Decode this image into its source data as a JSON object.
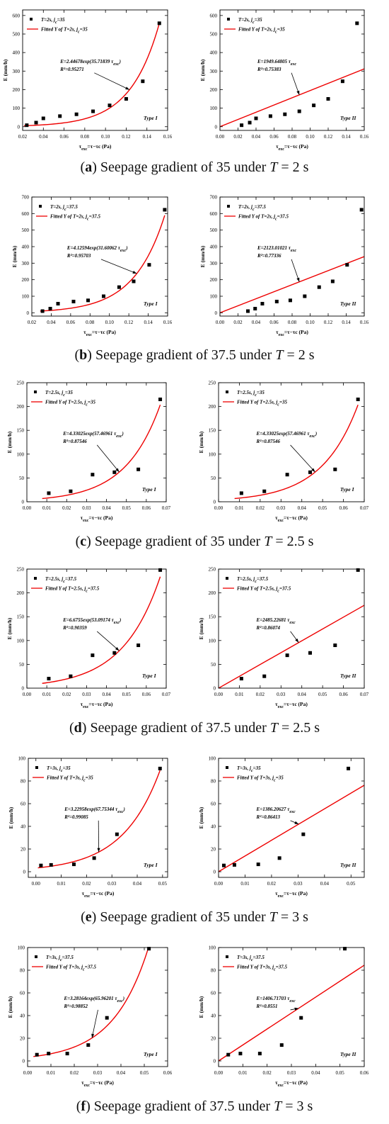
{
  "captions": [
    {
      "letter": "a",
      "prefix": "Seepage gradient of 35 under ",
      "var": "T",
      "suffix": " = 2 s"
    },
    {
      "letter": "b",
      "prefix": "Seepage gradient of 37.5 under ",
      "var": "T",
      "suffix": " = 2 s"
    },
    {
      "letter": "c",
      "prefix": "Seepage gradient of 35 under ",
      "var": "T",
      "suffix": " = 2.5 s"
    },
    {
      "letter": "d",
      "prefix": "Seepage gradient of 37.5 under ",
      "var": "T",
      "suffix": " = 2.5 s"
    },
    {
      "letter": "e",
      "prefix": "Seepage gradient of 35 under ",
      "var": "T",
      "suffix": " = 3 s"
    },
    {
      "letter": "f",
      "prefix": "Seepage gradient of 37.5 under ",
      "var": "T",
      "suffix": " = 3 s"
    }
  ],
  "common": {
    "ylabel": "E (mm/h)",
    "xlabel": "τexc=τ−τc (Pa)",
    "colors": {
      "fit": "#ee0000",
      "points": "#000000",
      "axis": "#000000"
    }
  },
  "chart_data": [
    {
      "id": "a1",
      "type": "scatter",
      "fit": "exp",
      "a": 2.44678,
      "b": 35.71839,
      "xlim": [
        0.02,
        0.16
      ],
      "xticks": [
        0.02,
        0.04,
        0.06,
        0.08,
        0.1,
        0.12,
        0.14,
        0.16
      ],
      "xdec": 2,
      "ylim": [
        -20,
        630
      ],
      "yticks": [
        0,
        100,
        200,
        300,
        400,
        500,
        600
      ],
      "legend": [
        "T=2s, jc=35",
        "Fitted Y of  T=2s, jc=35"
      ],
      "equation": "E=2.44678exp(35.71839 τexc)",
      "r2": "R²=0.95271",
      "type_label": "Type I",
      "x": [
        0.024,
        0.033,
        0.04,
        0.056,
        0.072,
        0.088,
        0.104,
        0.12,
        0.136,
        0.152
      ],
      "y": [
        8,
        22,
        45,
        57,
        67,
        83,
        115,
        150,
        245,
        558
      ]
    },
    {
      "id": "a2",
      "type": "scatter",
      "fit": "lin",
      "k": 1949.64805,
      "xlim": [
        0,
        0.16
      ],
      "xticks": [
        0,
        0.02,
        0.04,
        0.06,
        0.08,
        0.1,
        0.12,
        0.14,
        0.16
      ],
      "xdec": 2,
      "ylim": [
        -20,
        630
      ],
      "yticks": [
        0,
        100,
        200,
        300,
        400,
        500,
        600
      ],
      "legend": [
        "T=2s, jc=35",
        "Fitted Y of  T=2s, jc=35"
      ],
      "equation": "E=1949.64805 τexc",
      "r2": "R²=0.75383",
      "type_label": "Type II",
      "x": [
        0.024,
        0.033,
        0.04,
        0.056,
        0.072,
        0.088,
        0.104,
        0.12,
        0.136,
        0.152
      ],
      "y": [
        8,
        22,
        45,
        57,
        67,
        83,
        115,
        150,
        245,
        558
      ]
    },
    {
      "id": "b1",
      "type": "scatter",
      "fit": "exp",
      "a": 4.12594,
      "b": 31.60062,
      "xlim": [
        0.02,
        0.16
      ],
      "xticks": [
        0.02,
        0.04,
        0.06,
        0.08,
        0.1,
        0.12,
        0.14,
        0.16
      ],
      "xdec": 2,
      "ylim": [
        -20,
        700
      ],
      "yticks": [
        0,
        100,
        200,
        300,
        400,
        500,
        600,
        700
      ],
      "legend": [
        "T=2s, jc=37.5",
        "Fitted Y of T=2s, jc=37.5"
      ],
      "equation": "E=4.12594exp(31.60062 τexc)",
      "r2": "R²=0.95703",
      "type_label": "Type I",
      "x": [
        0.031,
        0.039,
        0.047,
        0.063,
        0.078,
        0.094,
        0.11,
        0.125,
        0.141,
        0.157
      ],
      "y": [
        10,
        25,
        55,
        68,
        75,
        100,
        155,
        190,
        290,
        623
      ]
    },
    {
      "id": "b2",
      "type": "scatter",
      "fit": "lin",
      "k": 2123.01021,
      "xlim": [
        0,
        0.16
      ],
      "xticks": [
        0,
        0.02,
        0.04,
        0.06,
        0.08,
        0.1,
        0.12,
        0.14,
        0.16
      ],
      "xdec": 2,
      "ylim": [
        -20,
        700
      ],
      "yticks": [
        0,
        100,
        200,
        300,
        400,
        500,
        600,
        700
      ],
      "legend": [
        "T=2s, jc=37.5",
        "Fitted Y of T=2s, jc=37.5"
      ],
      "equation": "E=2123.01021 τexc",
      "r2": "R²=0.77336",
      "type_label": "Type II",
      "x": [
        0.031,
        0.039,
        0.047,
        0.063,
        0.078,
        0.094,
        0.11,
        0.125,
        0.141,
        0.157
      ],
      "y": [
        10,
        25,
        55,
        68,
        75,
        100,
        155,
        190,
        290,
        623
      ]
    },
    {
      "id": "c1",
      "type": "scatter",
      "fit": "exp",
      "a": 4.33025,
      "b": 57.46961,
      "xlim": [
        0,
        0.07
      ],
      "xticks": [
        0,
        0.01,
        0.02,
        0.03,
        0.04,
        0.05,
        0.06,
        0.07
      ],
      "xdec": 2,
      "ylim": [
        0,
        250
      ],
      "yticks": [
        0,
        50,
        100,
        150,
        200,
        250
      ],
      "legend": [
        "T=2.5s, jc=35",
        "Fitted Y of T=2.5s, jc=35"
      ],
      "equation": "E=4.33025exp(57.46961 τexc)",
      "r2": "R²=0.87546",
      "type_label": "Type I",
      "x": [
        0.011,
        0.022,
        0.033,
        0.044,
        0.056,
        0.067
      ],
      "y": [
        18,
        22,
        57,
        62,
        68,
        215
      ]
    },
    {
      "id": "c2",
      "type": "scatter",
      "fit": "exp",
      "a": 4.33025,
      "b": 57.46961,
      "xlim": [
        0,
        0.07
      ],
      "xticks": [
        0,
        0.01,
        0.02,
        0.03,
        0.04,
        0.05,
        0.06,
        0.07
      ],
      "xdec": 2,
      "ylim": [
        0,
        250
      ],
      "yticks": [
        0,
        50,
        100,
        150,
        200,
        250
      ],
      "legend": [
        "T=2.5s, jc=35",
        "Fitted Y of T=2.5s, jc=35"
      ],
      "equation": "E=4.33025exp(57.46961 τexc)",
      "r2": "R²=0.87546",
      "type_label": "Type I",
      "x": [
        0.011,
        0.022,
        0.033,
        0.044,
        0.056,
        0.067
      ],
      "y": [
        18,
        22,
        57,
        62,
        68,
        215
      ]
    },
    {
      "id": "d1",
      "type": "scatter",
      "fit": "exp",
      "a": 6.6755,
      "b": 53.09174,
      "xlim": [
        0,
        0.07
      ],
      "xticks": [
        0,
        0.01,
        0.02,
        0.03,
        0.04,
        0.05,
        0.06,
        0.07
      ],
      "xdec": 2,
      "ylim": [
        0,
        250
      ],
      "yticks": [
        0,
        50,
        100,
        150,
        200,
        250
      ],
      "legend": [
        "T=2.5s, jc=37.5",
        "Fitted Y of T=2.5s, jc=37.5"
      ],
      "equation": "E=6.6755exp(53.09174 τexc)",
      "r2": "R²=0.90359",
      "type_label": "Type I",
      "x": [
        0.011,
        0.022,
        0.033,
        0.044,
        0.056,
        0.067
      ],
      "y": [
        20,
        25,
        69,
        74,
        90,
        248
      ]
    },
    {
      "id": "d2",
      "type": "scatter",
      "fit": "lin",
      "k": 2485.22681,
      "xlim": [
        0,
        0.07
      ],
      "xticks": [
        0,
        0.01,
        0.02,
        0.03,
        0.04,
        0.05,
        0.06,
        0.07
      ],
      "xdec": 2,
      "ylim": [
        0,
        250
      ],
      "yticks": [
        0,
        50,
        100,
        150,
        200,
        250
      ],
      "legend": [
        "T=2.5s, jc=37.5",
        "Fitted Y of T=2.5s, jc=37.5"
      ],
      "equation": "E=2485.22681 τexc",
      "r2": "R²=0.86074",
      "type_label": "Type II",
      "x": [
        0.011,
        0.022,
        0.033,
        0.044,
        0.056,
        0.067
      ],
      "y": [
        20,
        25,
        69,
        74,
        90,
        248
      ]
    },
    {
      "id": "e1",
      "type": "scatter",
      "fit": "exp",
      "a": 3.22958,
      "b": 67.75344,
      "xlim": [
        -0.003,
        0.052
      ],
      "xticks": [
        0,
        0.01,
        0.02,
        0.03,
        0.04,
        0.05
      ],
      "xdec": 2,
      "ylim": [
        -5,
        100
      ],
      "yticks": [
        0,
        20,
        40,
        60,
        80,
        100
      ],
      "legend": [
        "T=3s, jc=35",
        "Fitted Y of T=3s, jc=35"
      ],
      "equation": "E=3.22958exp(67.75344 τexc)",
      "r2": "R²=0.99085",
      "type_label": "Type I",
      "x": [
        0.002,
        0.006,
        0.015,
        0.023,
        0.032,
        0.049
      ],
      "y": [
        5.5,
        6,
        6.5,
        12,
        33,
        91
      ]
    },
    {
      "id": "e2",
      "type": "scatter",
      "fit": "lin",
      "k": 1386.20627,
      "xlim": [
        0,
        0.055
      ],
      "xticks": [
        0,
        0.01,
        0.02,
        0.03,
        0.04,
        0.05
      ],
      "xdec": 2,
      "ylim": [
        -5,
        100
      ],
      "yticks": [
        0,
        20,
        40,
        60,
        80,
        100
      ],
      "legend": [
        "T=3s, jc=35",
        "Fitted Y of T=3s, jc=35"
      ],
      "equation": "E=1386.20627 τexc",
      "r2": "R²=0.86413",
      "type_label": "Type II",
      "x": [
        0.002,
        0.006,
        0.015,
        0.023,
        0.032,
        0.049
      ],
      "y": [
        5.5,
        6,
        6.5,
        12,
        33,
        91
      ]
    },
    {
      "id": "f1",
      "type": "scatter",
      "fit": "exp",
      "a": 3.28164,
      "b": 65.96201,
      "xlim": [
        0,
        0.06
      ],
      "xticks": [
        0,
        0.01,
        0.02,
        0.03,
        0.04,
        0.05,
        0.06
      ],
      "xdec": 2,
      "ylim": [
        -5,
        100
      ],
      "yticks": [
        0,
        20,
        40,
        60,
        80,
        100
      ],
      "legend": [
        "T=3s, jc=37.5",
        "Fitted Y of T=3s, jc=37.5"
      ],
      "equation": "E=3.28164exp(65.96201 τexc)",
      "r2": "R²=0.98852",
      "type_label": "Type I",
      "x": [
        0.004,
        0.009,
        0.017,
        0.026,
        0.034,
        0.052
      ],
      "y": [
        5.5,
        6.5,
        6.5,
        14,
        38,
        99
      ]
    },
    {
      "id": "f2",
      "type": "scatter",
      "fit": "lin",
      "k": 1406.71703,
      "xlim": [
        0,
        0.06
      ],
      "xticks": [
        0,
        0.01,
        0.02,
        0.03,
        0.04,
        0.05,
        0.06
      ],
      "xdec": 2,
      "ylim": [
        -5,
        100
      ],
      "yticks": [
        0,
        20,
        40,
        60,
        80,
        100
      ],
      "legend": [
        "T=3s, jc=37.5",
        "Fitted Y of T=3s, jc=37.5"
      ],
      "equation": "E=1406.71703 τexc",
      "r2": "R²=0.8551",
      "type_label": "Type II",
      "x": [
        0.004,
        0.009,
        0.017,
        0.026,
        0.034,
        0.052
      ],
      "y": [
        5.5,
        6.5,
        6.5,
        14,
        38,
        99
      ]
    }
  ]
}
